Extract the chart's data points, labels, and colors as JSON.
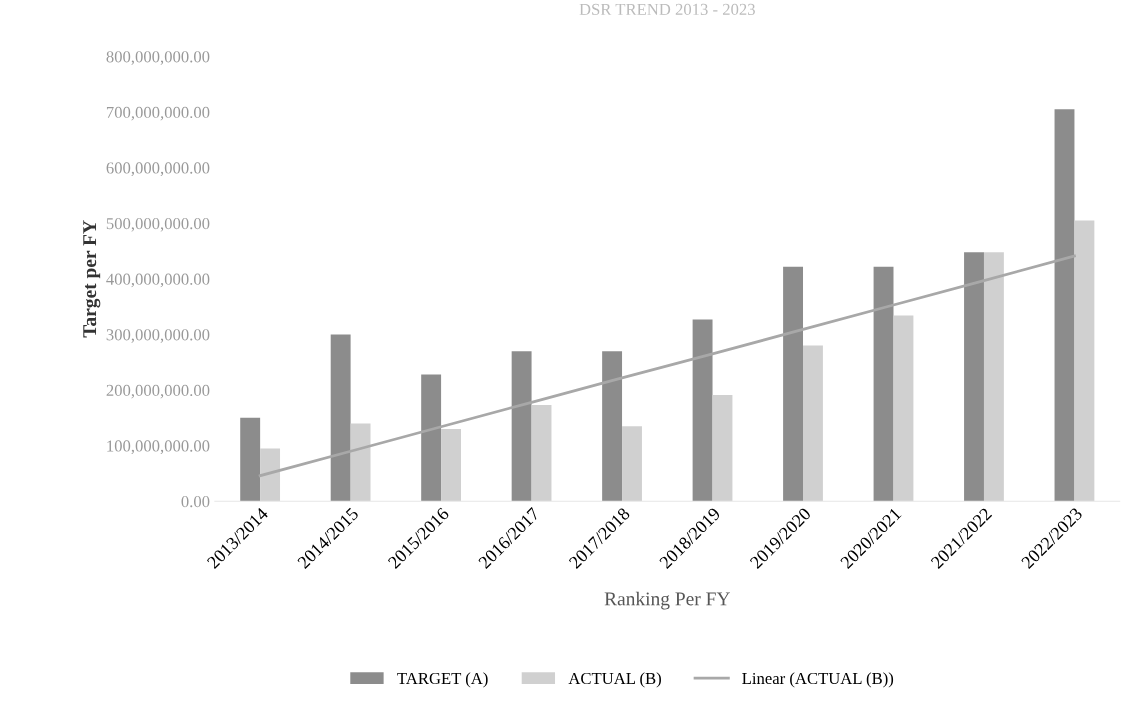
{
  "chart_data": {
    "type": "bar",
    "title": "DSR TREND 2013 - 2023",
    "xlabel": "Ranking Per FY",
    "ylabel": "Target per FY",
    "categories": [
      "2013/2014",
      "2014/2015",
      "2015/2016",
      "2016/2017",
      "2017/2018",
      "2018/2019",
      "2019/2020",
      "2020/2021",
      "2021/2022",
      "2022/2023"
    ],
    "series": [
      {
        "name": "TARGET (A)",
        "color": "#8c8c8c",
        "values": [
          150000000,
          300000000,
          228000000,
          270000000,
          270000000,
          327000000,
          422000000,
          422000000,
          448000000,
          705000000
        ]
      },
      {
        "name": "ACTUAL (B)",
        "color": "#d0d0d0",
        "values": [
          95000000,
          140000000,
          130000000,
          173000000,
          135000000,
          191000000,
          280000000,
          334000000,
          448000000,
          505000000
        ]
      },
      {
        "name": "Linear (ACTUAL (B))",
        "type": "line",
        "color": "#a8a8a8",
        "values": [
          46000000,
          90000000,
          134000000,
          178000000,
          222000000,
          265000000,
          309000000,
          353000000,
          397000000,
          441000000
        ]
      }
    ],
    "ylim": [
      0,
      800000000
    ],
    "yticks": [
      {
        "value": 0,
        "label": "0.00"
      },
      {
        "value": 100000000,
        "label": "100,000,000.00"
      },
      {
        "value": 200000000,
        "label": "200,000,000.00"
      },
      {
        "value": 300000000,
        "label": "300,000,000.00"
      },
      {
        "value": 400000000,
        "label": "400,000,000.00"
      },
      {
        "value": 500000000,
        "label": "500,000,000.00"
      },
      {
        "value": 600000000,
        "label": "600,000,000.00"
      },
      {
        "value": 700000000,
        "label": "700,000,000.00"
      },
      {
        "value": 800000000,
        "label": "800,000,000.00"
      }
    ],
    "grid": false,
    "legend": "bottom",
    "line_style": "solid",
    "marker": "none"
  }
}
